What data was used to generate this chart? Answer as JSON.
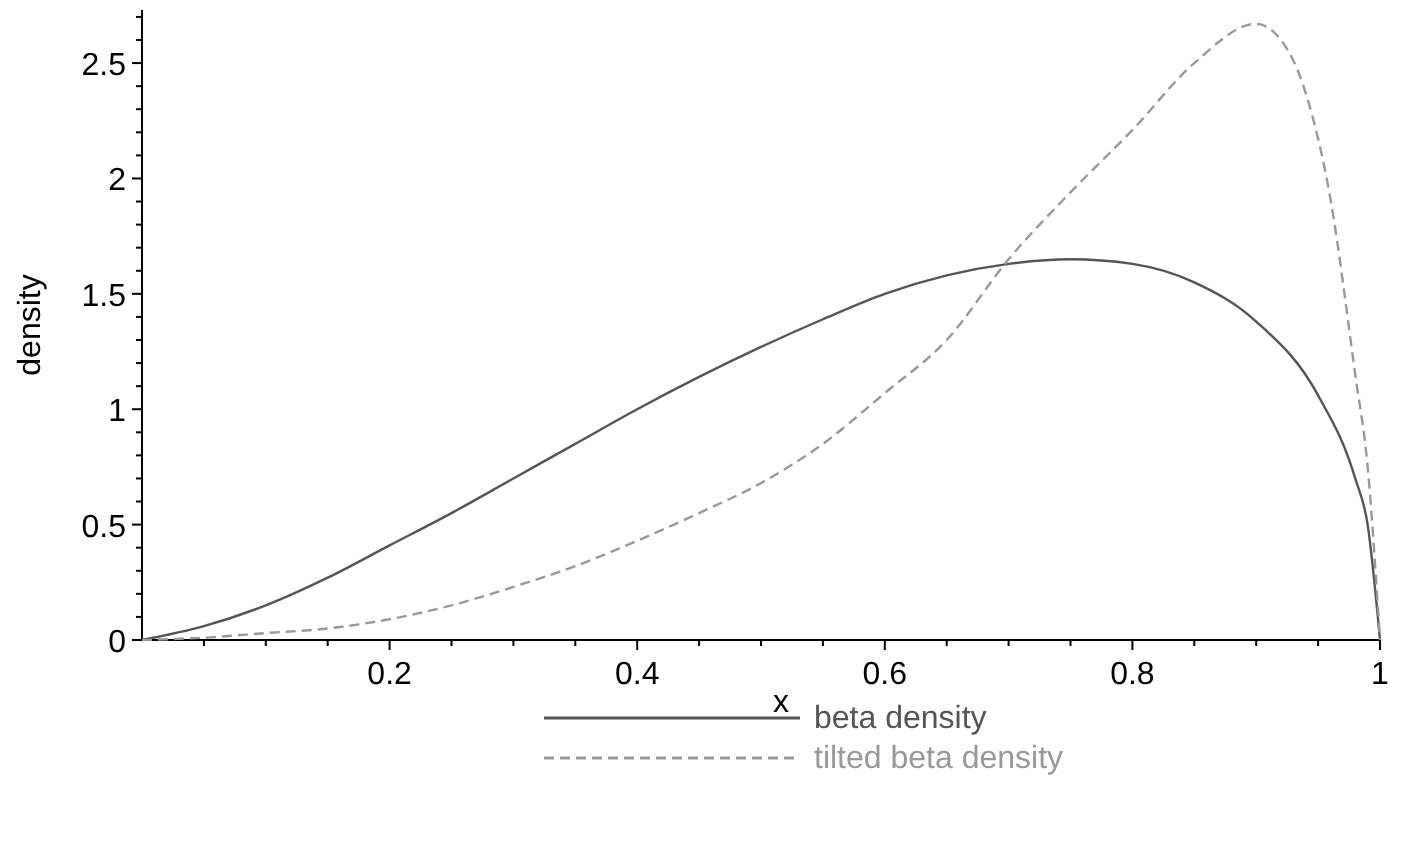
{
  "chart_data": {
    "type": "line",
    "xlabel": "x",
    "ylabel": "density",
    "xlim": [
      0,
      1
    ],
    "ylim": [
      0,
      2.73
    ],
    "xticks": [
      {
        "value": 0.05,
        "label": null
      },
      {
        "value": 0.1,
        "label": null
      },
      {
        "value": 0.15,
        "label": null
      },
      0.2,
      {
        "value": 0.25,
        "label": null
      },
      {
        "value": 0.3,
        "label": null
      },
      {
        "value": 0.35,
        "label": null
      },
      0.4,
      {
        "value": 0.45,
        "label": null
      },
      {
        "value": 0.5,
        "label": null
      },
      {
        "value": 0.55,
        "label": null
      },
      0.6,
      {
        "value": 0.65,
        "label": null
      },
      {
        "value": 0.7,
        "label": null
      },
      {
        "value": 0.75,
        "label": null
      },
      0.8,
      {
        "value": 0.85,
        "label": null
      },
      {
        "value": 0.9,
        "label": null
      },
      {
        "value": 0.95,
        "label": null
      },
      1
    ],
    "yticks": [
      0,
      {
        "value": 0.1,
        "label": null
      },
      {
        "value": 0.2,
        "label": null
      },
      {
        "value": 0.3,
        "label": null
      },
      {
        "value": 0.4,
        "label": null
      },
      0.5,
      {
        "value": 0.6,
        "label": null
      },
      {
        "value": 0.7,
        "label": null
      },
      {
        "value": 0.8,
        "label": null
      },
      {
        "value": 0.9,
        "label": null
      },
      1,
      {
        "value": 1.1,
        "label": null
      },
      {
        "value": 1.2,
        "label": null
      },
      {
        "value": 1.3,
        "label": null
      },
      {
        "value": 1.4,
        "label": null
      },
      1.5,
      {
        "value": 1.6,
        "label": null
      },
      {
        "value": 1.7,
        "label": null
      },
      {
        "value": 1.8,
        "label": null
      },
      {
        "value": 1.9,
        "label": null
      },
      2,
      {
        "value": 2.1,
        "label": null
      },
      {
        "value": 2.2,
        "label": null
      },
      {
        "value": 2.3,
        "label": null
      },
      {
        "value": 2.4,
        "label": null
      },
      2.5,
      {
        "value": 2.6,
        "label": null
      },
      {
        "value": 2.7,
        "label": null
      }
    ],
    "grid": false,
    "legend": "bottom",
    "series": [
      {
        "name": "beta density",
        "color": "#555555",
        "line_style": "solid",
        "x": [
          0,
          0.05,
          0.1,
          0.15,
          0.2,
          0.25,
          0.3,
          0.35,
          0.4,
          0.45,
          0.5,
          0.55,
          0.6,
          0.65,
          0.7,
          0.75,
          0.8,
          0.85,
          0.9,
          0.95,
          0.98,
          0.99,
          1
        ],
        "values": [
          0,
          0.06,
          0.15,
          0.27,
          0.41,
          0.55,
          0.7,
          0.85,
          1.0,
          1.14,
          1.27,
          1.39,
          1.5,
          1.58,
          1.63,
          1.65,
          1.63,
          1.55,
          1.38,
          1.06,
          0.7,
          0.5,
          0
        ]
      },
      {
        "name": "tilted beta density",
        "color": "#999999",
        "line_style": "dashed",
        "x": [
          0,
          0.05,
          0.1,
          0.15,
          0.2,
          0.25,
          0.3,
          0.35,
          0.4,
          0.45,
          0.5,
          0.55,
          0.6,
          0.65,
          0.7,
          0.75,
          0.8,
          0.85,
          0.9,
          0.92,
          0.94,
          0.96,
          0.98,
          0.99,
          1
        ],
        "values": [
          0,
          0.01,
          0.03,
          0.05,
          0.09,
          0.15,
          0.23,
          0.32,
          0.43,
          0.55,
          0.68,
          0.85,
          1.07,
          1.3,
          1.65,
          1.94,
          2.21,
          2.5,
          2.67,
          2.6,
          2.37,
          1.91,
          1.15,
          0.75,
          0
        ]
      }
    ]
  }
}
